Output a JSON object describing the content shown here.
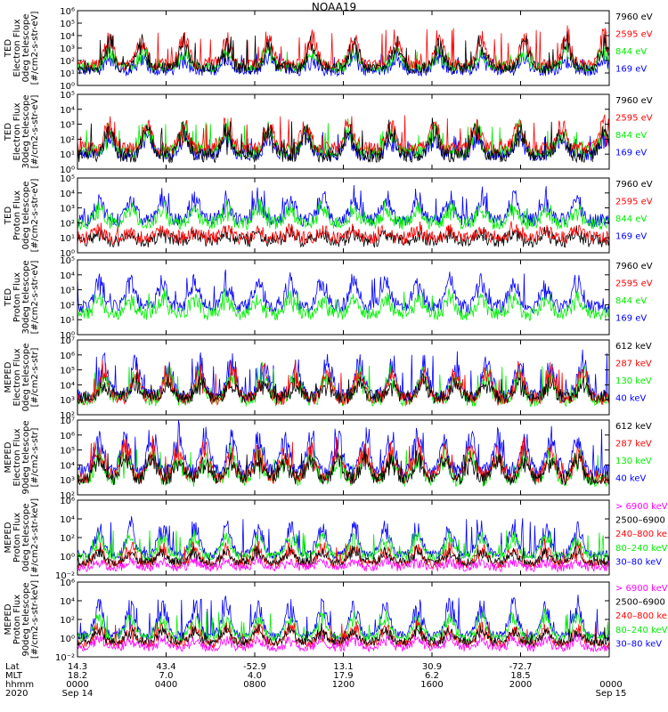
{
  "title": "NOAA19",
  "colors": {
    "black": "#000000",
    "red": "#ff0000",
    "green": "#00ee00",
    "blue": "#0000ff",
    "magenta": "#ff00ff"
  },
  "chart_data": [
    {
      "type": "line",
      "ylabel": [
        "TED",
        "Electron Flux",
        "0deg telescope",
        "[#/cm2-s-str-eV]"
      ],
      "ylog": true,
      "ylim": [
        1,
        1000000
      ],
      "yticks": [
        "10⁰",
        "10¹",
        "10²",
        "10³",
        "10⁴",
        "10⁵",
        "10⁶"
      ],
      "legend": [
        {
          "name": "7960 eV",
          "color": "#000000"
        },
        {
          "name": "2595 eV",
          "color": "#ff0000"
        },
        {
          "name": "844 eV",
          "color": "#00ee00"
        },
        {
          "name": "169 eV",
          "color": "#0000ff"
        }
      ],
      "series": [
        {
          "color": "#0000ff",
          "base": 1.2,
          "spike": 2.6
        },
        {
          "color": "#00ee00",
          "base": 1.5,
          "spike": 3.0
        },
        {
          "color": "#ff0000",
          "base": 1.7,
          "spike": 4.6
        },
        {
          "color": "#000000",
          "base": 1.4,
          "spike": 4.1
        }
      ],
      "bursts": [
        0.06,
        0.12,
        0.2,
        0.28,
        0.36,
        0.44,
        0.52,
        0.6,
        0.68,
        0.76,
        0.84,
        0.92,
        0.99
      ]
    },
    {
      "type": "line",
      "ylabel": [
        "TED",
        "Electron Flux",
        "30deg telescope",
        "[#/cm2-s-str-eV]"
      ],
      "ylog": true,
      "ylim": [
        1,
        100000
      ],
      "yticks": [
        "10⁰",
        "10¹",
        "10²",
        "10³",
        "10⁴",
        "10⁵"
      ],
      "legend": [
        {
          "name": "7960 eV",
          "color": "#000000"
        },
        {
          "name": "2595 eV",
          "color": "#ff0000"
        },
        {
          "name": "844 eV",
          "color": "#00ee00"
        },
        {
          "name": "169 eV",
          "color": "#0000ff"
        }
      ],
      "series": [
        {
          "color": "#0000ff",
          "base": 1.0,
          "spike": 2.5
        },
        {
          "color": "#00ee00",
          "base": 1.2,
          "spike": 3.2
        },
        {
          "color": "#ff0000",
          "base": 1.4,
          "spike": 3.6
        },
        {
          "color": "#000000",
          "base": 0.9,
          "spike": 3.2
        }
      ],
      "bursts": [
        0.06,
        0.13,
        0.2,
        0.28,
        0.36,
        0.43,
        0.51,
        0.59,
        0.67,
        0.75,
        0.83,
        0.91,
        0.99
      ]
    },
    {
      "type": "line",
      "ylabel": [
        "TED",
        "Proton Flux",
        "0deg telescope",
        "[#/cm2-s-str-eV]"
      ],
      "ylog": true,
      "ylim": [
        1,
        100000
      ],
      "yticks": [
        "10⁰",
        "10¹",
        "10²",
        "10³",
        "10⁴",
        "10⁵"
      ],
      "legend": [
        {
          "name": "7960 eV",
          "color": "#000000"
        },
        {
          "name": "2595 eV",
          "color": "#ff0000"
        },
        {
          "name": "844 eV",
          "color": "#00ee00"
        },
        {
          "name": "169 eV",
          "color": "#0000ff"
        }
      ],
      "series": [
        {
          "color": "#000000",
          "base": 0.8,
          "spike": 1.5
        },
        {
          "color": "#ff0000",
          "base": 1.0,
          "spike": 1.8
        },
        {
          "color": "#0000ff",
          "base": 2.2,
          "spike": 4.2
        },
        {
          "color": "#00ee00",
          "base": 2.0,
          "spike": 3.3
        }
      ],
      "bursts": [
        0.04,
        0.1,
        0.16,
        0.22,
        0.28,
        0.34,
        0.4,
        0.46,
        0.52,
        0.58,
        0.64,
        0.7,
        0.76,
        0.82,
        0.88,
        0.94
      ]
    },
    {
      "type": "line",
      "ylabel": [
        "TED",
        "Proton Flux",
        "30deg telescope",
        "[#/cm2-s-str-eV]"
      ],
      "ylog": true,
      "ylim": [
        1,
        100000
      ],
      "yticks": [
        "10⁰",
        "10¹",
        "10²",
        "10³",
        "10⁴",
        "10⁵"
      ],
      "legend": [
        {
          "name": "7960 eV",
          "color": "#000000"
        },
        {
          "name": "2595 eV",
          "color": "#ff0000"
        },
        {
          "name": "844 eV",
          "color": "#00ee00"
        },
        {
          "name": "169 eV",
          "color": "#0000ff"
        }
      ],
      "series": [
        {
          "color": "#0000ff",
          "base": 1.9,
          "spike": 4.1
        },
        {
          "color": "#00ee00",
          "base": 1.4,
          "spike": 2.9
        }
      ],
      "bursts": [
        0.04,
        0.1,
        0.16,
        0.22,
        0.28,
        0.34,
        0.4,
        0.46,
        0.52,
        0.58,
        0.64,
        0.7,
        0.76,
        0.82,
        0.88,
        0.94
      ]
    },
    {
      "type": "line",
      "ylabel": [
        "MEPED",
        "Electron Flux",
        "0deg telescope",
        "[#/cm2-s-str]"
      ],
      "ylog": true,
      "ylim": [
        100,
        10000000
      ],
      "yticks": [
        "10²",
        "10³",
        "10⁴",
        "10⁵",
        "10⁶",
        "10⁷"
      ],
      "legend": [
        {
          "name": "612 keV",
          "color": "#000000"
        },
        {
          "name": "287 keV",
          "color": "#ff0000"
        },
        {
          "name": "130 keV",
          "color": "#00ee00"
        },
        {
          "name": "40 keV",
          "color": "#0000ff"
        }
      ],
      "series": [
        {
          "color": "#0000ff",
          "base": 3.3,
          "spike": 6.2
        },
        {
          "color": "#00ee00",
          "base": 3.0,
          "spike": 5.3
        },
        {
          "color": "#ff0000",
          "base": 3.1,
          "spike": 5.4
        },
        {
          "color": "#000000",
          "base": 3.2,
          "spike": 4.4
        }
      ],
      "bursts": [
        0.05,
        0.11,
        0.17,
        0.23,
        0.29,
        0.35,
        0.41,
        0.47,
        0.53,
        0.59,
        0.65,
        0.71,
        0.77,
        0.83,
        0.89,
        0.95
      ]
    },
    {
      "type": "line",
      "ylabel": [
        "MEPED",
        "Electron Flux",
        "90deg telescope",
        "[#/cm2-s-str]"
      ],
      "ylog": true,
      "ylim": [
        100,
        10000000
      ],
      "yticks": [
        "10²",
        "10³",
        "10⁴",
        "10⁵",
        "10⁶",
        "10⁷"
      ],
      "legend": [
        {
          "name": "612 keV",
          "color": "#000000"
        },
        {
          "name": "287 keV",
          "color": "#ff0000"
        },
        {
          "name": "130 keV",
          "color": "#00ee00"
        },
        {
          "name": "40 keV",
          "color": "#0000ff"
        }
      ],
      "series": [
        {
          "color": "#00ee00",
          "base": 3.0,
          "spike": 5.2
        },
        {
          "color": "#0000ff",
          "base": 3.6,
          "spike": 6.6
        },
        {
          "color": "#ff0000",
          "base": 3.2,
          "spike": 5.6
        },
        {
          "color": "#000000",
          "base": 3.1,
          "spike": 4.8
        }
      ],
      "bursts": [
        0.04,
        0.09,
        0.14,
        0.19,
        0.24,
        0.29,
        0.34,
        0.39,
        0.44,
        0.49,
        0.54,
        0.59,
        0.64,
        0.69,
        0.74,
        0.79,
        0.84,
        0.89,
        0.94
      ]
    },
    {
      "type": "line",
      "ylabel": [
        "MEPED",
        "Proton Flux",
        "0deg telescope",
        "[#/cm2-s-str-keV]"
      ],
      "ylog": true,
      "ylim": [
        0.01,
        1000000
      ],
      "yticks": [
        "10⁻²",
        "10⁰",
        "10²",
        "10⁴",
        "10⁶"
      ],
      "legend": [
        {
          "name": "> 6900 keV",
          "color": "#ff00ff"
        },
        {
          "name": "2500–6900",
          "color": "#000000"
        },
        {
          "name": "240–800 ke",
          "color": "#ff0000"
        },
        {
          "name": "80–240 keV",
          "color": "#00ee00"
        },
        {
          "name": "30–80 keV",
          "color": "#0000ff"
        }
      ],
      "series": [
        {
          "color": "#0000ff",
          "base": 0.2,
          "spike": 4.2
        },
        {
          "color": "#00ee00",
          "base": 0.0,
          "spike": 2.8
        },
        {
          "color": "#ff0000",
          "base": -0.8,
          "spike": 1.5
        },
        {
          "color": "#000000",
          "base": -0.6,
          "spike": 0.9
        },
        {
          "color": "#ff00ff",
          "base": -1.2,
          "spike": -0.3
        }
      ],
      "bursts": [
        0.04,
        0.1,
        0.16,
        0.22,
        0.28,
        0.34,
        0.4,
        0.46,
        0.52,
        0.58,
        0.64,
        0.7,
        0.76,
        0.82,
        0.88,
        0.94
      ]
    },
    {
      "type": "line",
      "ylabel": [
        "MEPED",
        "Proton Flux",
        "90deg telescope",
        "[#/cm2-s-str-keV]"
      ],
      "ylog": true,
      "ylim": [
        0.01,
        1000000
      ],
      "yticks": [
        "10⁻²",
        "10⁰",
        "10²",
        "10⁴",
        "10⁶"
      ],
      "legend": [
        {
          "name": "> 6900 keV",
          "color": "#ff00ff"
        },
        {
          "name": "2500–6900",
          "color": "#000000"
        },
        {
          "name": "240–800 ke",
          "color": "#ff0000"
        },
        {
          "name": "80–240 keV",
          "color": "#00ee00"
        },
        {
          "name": "30–80 keV",
          "color": "#0000ff"
        }
      ],
      "series": [
        {
          "color": "#0000ff",
          "base": 0.3,
          "spike": 4.5
        },
        {
          "color": "#00ee00",
          "base": 0.1,
          "spike": 3.0
        },
        {
          "color": "#ff0000",
          "base": -0.6,
          "spike": 1.8
        },
        {
          "color": "#000000",
          "base": -0.4,
          "spike": 1.3
        },
        {
          "color": "#ff00ff",
          "base": -1.0,
          "spike": 0.2
        }
      ],
      "bursts": [
        0.04,
        0.1,
        0.16,
        0.22,
        0.28,
        0.34,
        0.4,
        0.46,
        0.52,
        0.58,
        0.64,
        0.7,
        0.76,
        0.82,
        0.88,
        0.94
      ]
    }
  ],
  "orbit_labels": [
    {
      "key": "Lat",
      "values": [
        "14.3",
        "43.4",
        "-52.9",
        "13.1",
        "30.9",
        "-72.7",
        ""
      ]
    },
    {
      "key": "MLT",
      "values": [
        "18.2",
        "7.0",
        "4.0",
        "17.9",
        "6.2",
        "18.5",
        ""
      ]
    },
    {
      "key": "hhmm",
      "values": [
        "0000",
        "0400",
        "0800",
        "1200",
        "1600",
        "2000",
        "0000"
      ]
    },
    {
      "key": "2020",
      "values": [
        "Sep 14",
        "",
        "",
        "",
        "",
        "",
        "Sep 15"
      ]
    }
  ]
}
